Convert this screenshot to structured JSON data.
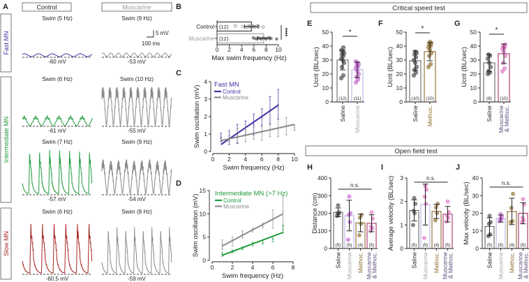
{
  "panelA": {
    "label": "A",
    "conditions": [
      {
        "name": "Control",
        "color": "#222222"
      },
      {
        "name": "Muscarine",
        "color": "#9a9a9a"
      }
    ],
    "rows": [
      {
        "name": "Fast MN",
        "color": "#3d33a3"
      },
      {
        "name": "Intermediate MN",
        "color": "#1f9b3c"
      },
      {
        "name": "Slow MN",
        "color": "#a3261f"
      }
    ],
    "traces": [
      {
        "row": 0,
        "condition": 0,
        "title": "Swim (5 Hz)",
        "frequency_hz": 5,
        "vm": "-60 mV",
        "color": "#3d33a3"
      },
      {
        "row": 0,
        "condition": 1,
        "title": "Swim (9 Hz)",
        "frequency_hz": 9,
        "vm": "-53 mV",
        "color": "#8a8a8a"
      },
      {
        "row": 1,
        "condition": 0,
        "title": "Swim (6 Hz)",
        "frequency_hz": 6,
        "vm": "-61 mV",
        "color": "#1f9b3c"
      },
      {
        "row": 1,
        "condition": 1,
        "title": "Swim (10 Hz)",
        "frequency_hz": 10,
        "vm": "-55 mV",
        "color": "#8a8a8a"
      },
      {
        "row": 1,
        "condition": 0,
        "title": "Swim (7 Hz)",
        "frequency_hz": 7,
        "vm": "-57 mV",
        "color": "#1f9b3c"
      },
      {
        "row": 1,
        "condition": 1,
        "title": "Swim (9 Hz)",
        "frequency_hz": 9,
        "vm": "-54 mV",
        "color": "#8a8a8a"
      },
      {
        "row": 2,
        "condition": 0,
        "title": "Swim (6 Hz)",
        "frequency_hz": 6,
        "vm": "-60.5 mV",
        "color": "#a3261f"
      },
      {
        "row": 2,
        "condition": 1,
        "title": "Swim (8 Hz)",
        "frequency_hz": 8,
        "vm": "-59 mV",
        "color": "#8a8a8a"
      }
    ],
    "scale_bar": {
      "voltage": "5 mV",
      "time": "100 ms"
    }
  },
  "headers": {
    "critical": "Critical speed test",
    "open_field": "Open field test"
  },
  "chart_data": [
    {
      "panel": "B",
      "type": "bar",
      "orientation": "horizontal",
      "categories": [
        "Control",
        "Muscarine"
      ],
      "label_colors": [
        "#222222",
        "#9a9a9a"
      ],
      "values": [
        5.6,
        7.6
      ],
      "sd": [
        1.1,
        1.0
      ],
      "n": [
        "(12)",
        "(12)"
      ],
      "points": [
        [
          3.0,
          4.2,
          4.9,
          5.2,
          5.4,
          5.6,
          5.8,
          6.0,
          6.2,
          6.5,
          6.8,
          7.5
        ],
        [
          5.9,
          6.1,
          6.4,
          6.7,
          7.0,
          7.2,
          7.5,
          7.8,
          8.0,
          8.3,
          8.8,
          9.7
        ]
      ],
      "xlabel": "Max swim frequency (Hz)",
      "xlim": [
        0,
        10
      ],
      "xticks": [
        0,
        2,
        4,
        6,
        8,
        10
      ],
      "significance": "****"
    },
    {
      "panel": "C",
      "type": "line",
      "title": "Fast MN",
      "title_color": "#3d33a3",
      "xlabel": "Swim frequency (Hz)",
      "ylabel": "Swim oscillation  (mV)",
      "xlim": [
        0,
        10
      ],
      "ylim": [
        0,
        4
      ],
      "xticks": [
        0,
        2,
        4,
        6,
        8,
        10
      ],
      "yticks": [
        0,
        1,
        2,
        3,
        4
      ],
      "series": [
        {
          "name": "Control",
          "color": "#3d33a3",
          "fit": [
            [
              1,
              0.4
            ],
            [
              8,
              2.65
            ]
          ],
          "x": [
            1,
            2,
            3,
            4,
            5,
            6,
            7,
            8
          ],
          "mean": [
            0.8,
            0.8,
            1.0,
            1.35,
            1.55,
            1.95,
            2.35,
            2.7
          ],
          "err": [
            0.25,
            0.4,
            0.55,
            0.4,
            0.6,
            0.5,
            0.8,
            0.85
          ]
        },
        {
          "name": "Muscarine",
          "color": "#8a8a8a",
          "fit": [
            [
              1,
              0.62
            ],
            [
              10,
              1.55
            ]
          ],
          "x": [
            1,
            2,
            3,
            4,
            5,
            6,
            7,
            8,
            9,
            10
          ],
          "mean": [
            0.65,
            0.75,
            0.9,
            0.95,
            1.05,
            1.1,
            1.25,
            1.35,
            1.45,
            1.35
          ],
          "err": [
            0.1,
            0.15,
            0.4,
            0.4,
            0.35,
            0.45,
            0.4,
            0.5,
            0.5,
            0.15
          ]
        }
      ]
    },
    {
      "panel": "D",
      "type": "line",
      "title": "Intermediate MN (>7 Hz)",
      "title_color": "#1f9b3c",
      "xlabel": "Swim frequency (Hz)",
      "ylabel": "Swim oscillation  (mV)",
      "xlim": [
        0,
        8
      ],
      "ylim": [
        0,
        15
      ],
      "xticks": [
        0,
        2,
        4,
        6,
        8
      ],
      "yticks": [
        0,
        5,
        10,
        15
      ],
      "series": [
        {
          "name": "Control",
          "color": "#1f9b3c",
          "fit": [
            [
              1,
              1.1
            ],
            [
              7,
              6.0
            ]
          ],
          "x": [
            1,
            2,
            3,
            4,
            5,
            6,
            7
          ],
          "mean": [
            1.3,
            1.9,
            2.6,
            3.5,
            3.9,
            4.6,
            6.7
          ],
          "err": [
            0.4,
            0.3,
            0.3,
            0.4,
            0.4,
            0.6,
            0.8
          ]
        },
        {
          "name": "Muscarine",
          "color": "#8a8a8a",
          "fit": [
            [
              1,
              3.1
            ],
            [
              7,
              10.0
            ]
          ],
          "x": [
            1,
            2,
            3,
            4,
            5,
            6,
            7
          ],
          "mean": [
            3.4,
            4.1,
            5.6,
            6.5,
            7.5,
            8.9,
            10.6
          ],
          "err": [
            1.0,
            1.0,
            0.8,
            0.4,
            0.5,
            2.0,
            3.2
          ]
        }
      ]
    },
    {
      "panel": "E",
      "type": "bar",
      "categories": [
        [
          "Saline"
        ],
        [
          "Muscarine"
        ]
      ],
      "label_colors": [
        "#222222",
        "#a8a8a8"
      ],
      "bar_colors": [
        "#666666",
        "#b8b0e8"
      ],
      "point_colors": [
        "#444444",
        "#c060d0"
      ],
      "values": [
        30,
        23
      ],
      "sd": [
        7,
        5.5
      ],
      "n": [
        "(12)",
        "(11)"
      ],
      "points": [
        [
          17,
          19,
          25,
          28,
          30,
          31,
          33,
          34,
          35,
          36,
          37,
          39
        ],
        [
          14,
          16,
          18,
          20,
          22,
          24,
          25,
          26,
          27,
          28,
          29
        ]
      ],
      "ylabel": "Ucrit (BL/sec)",
      "ylim": [
        0,
        50
      ],
      "yticks": [
        0,
        10,
        20,
        30,
        40,
        50
      ],
      "significance": "*"
    },
    {
      "panel": "F",
      "type": "bar",
      "categories": [
        [
          "Saline"
        ],
        [
          "Methoc."
        ]
      ],
      "label_colors": [
        "#222222",
        "#8b6a2a"
      ],
      "bar_colors": [
        "#666666",
        "#8b6a2a"
      ],
      "point_colors": [
        "#444444",
        "#8b6a2a"
      ],
      "values": [
        29.5,
        36
      ],
      "sd": [
        7,
        6.5
      ],
      "n": [
        "(10)",
        "(10)"
      ],
      "points": [
        [
          19,
          21,
          23,
          25,
          28,
          30,
          32,
          34,
          35,
          36
        ],
        [
          25,
          27,
          33,
          35,
          37,
          39,
          40,
          41,
          42,
          43
        ]
      ],
      "ylabel": "Ucrit (BL/sec)",
      "ylim": [
        0,
        50
      ],
      "yticks": [
        0,
        10,
        20,
        30,
        40,
        50
      ],
      "significance": "*"
    },
    {
      "panel": "G",
      "type": "bar",
      "categories": [
        [
          "Saline"
        ],
        [
          "Muscarine",
          "& Methoc."
        ]
      ],
      "label_colors": [
        "#222222",
        "#5a4a7a"
      ],
      "bar_colors": [
        "#666666",
        "#a8306a"
      ],
      "point_colors": [
        "#444444",
        "#e070c0"
      ],
      "values": [
        28,
        34.5
      ],
      "sd": [
        6,
        7
      ],
      "n": [
        "(8)",
        "(10)"
      ],
      "points": [
        [
          20,
          21,
          22,
          25,
          28,
          31,
          33,
          34
        ],
        [
          22,
          24,
          28,
          33,
          36,
          38,
          39,
          40,
          41,
          39
        ]
      ],
      "ylabel": "Ucrit (BL/sec)",
      "ylim": [
        0,
        50
      ],
      "yticks": [
        0,
        10,
        20,
        30,
        40,
        50
      ],
      "significance": "*"
    },
    {
      "panel": "H",
      "type": "bar",
      "categories": [
        [
          "Saline"
        ],
        [
          "Muscarine"
        ],
        [
          "Methoc."
        ],
        [
          "Muscarine",
          "& Methoc."
        ]
      ],
      "label_colors": [
        "#222222",
        "#a8a8a8",
        "#8b6a2a",
        "#5a4a7a"
      ],
      "bar_colors": [
        "#666666",
        "#b8b0e8",
        "#8b6a2a",
        "#a8306a"
      ],
      "point_colors": [
        "#444444",
        "#c060d0",
        "#8b6a2a",
        "#e070c0"
      ],
      "values": [
        205,
        187,
        145,
        143
      ],
      "sd": [
        25,
        87,
        50,
        48
      ],
      "n": [
        "(5)",
        "(5)",
        "(4)",
        "(5)"
      ],
      "points": [
        [
          185,
          195,
          200,
          205,
          245
        ],
        [
          50,
          150,
          190,
          200,
          295
        ],
        [
          75,
          140,
          175,
          190
        ],
        [
          100,
          115,
          125,
          170,
          205
        ]
      ],
      "ylabel": "Distance (cm)",
      "ylim": [
        0,
        400
      ],
      "yticks": [
        0,
        100,
        200,
        300,
        400
      ],
      "significance": "n.s."
    },
    {
      "panel": "I",
      "type": "bar",
      "categories": [
        [
          "Saline"
        ],
        [
          "Muscarine"
        ],
        [
          "Methoc."
        ],
        [
          "Muscarine",
          "& Methoc."
        ]
      ],
      "label_colors": [
        "#222222",
        "#a8a8a8",
        "#8b6a2a",
        "#5a4a7a"
      ],
      "bar_colors": [
        "#666666",
        "#b8b0e8",
        "#8b6a2a",
        "#a8306a"
      ],
      "point_colors": [
        "#444444",
        "#e070c0",
        "#8b6a2a",
        "#e070c0"
      ],
      "values": [
        1.62,
        1.87,
        1.58,
        1.46
      ],
      "sd": [
        0.45,
        0.87,
        0.3,
        0.33
      ],
      "n": [
        "(5)",
        "(5)",
        "(4)",
        "(5)"
      ],
      "points": [
        [
          1.0,
          1.5,
          1.6,
          1.9,
          2.15
        ],
        [
          0.45,
          1.9,
          2.2,
          2.5,
          2.65
        ],
        [
          1.2,
          1.5,
          1.75,
          1.9
        ],
        [
          1.15,
          1.3,
          1.4,
          1.55,
          2.0
        ]
      ],
      "ylabel": "Average velocity (BL/sec)",
      "ylim": [
        0,
        3
      ],
      "yticks": [
        0,
        1,
        2,
        3
      ],
      "significance": "n.s."
    },
    {
      "panel": "J",
      "type": "bar",
      "categories": [
        [
          "Saline"
        ],
        [
          "Muscarine"
        ],
        [
          "Methoc."
        ],
        [
          "Muscarine",
          "& Methoc."
        ]
      ],
      "label_colors": [
        "#222222",
        "#a8a8a8",
        "#8b6a2a",
        "#5a4a7a"
      ],
      "bar_colors": [
        "#666666",
        "#b8b0e8",
        "#8b6a2a",
        "#a8306a"
      ],
      "point_colors": [
        "#444444",
        "#c060d0",
        "#8b6a2a",
        "#e070c0"
      ],
      "values": [
        12.5,
        17,
        21,
        20
      ],
      "sd": [
        5,
        2,
        7.5,
        6
      ],
      "n": [
        "(5)",
        "(5)",
        "(4)",
        "(5)"
      ],
      "points": [
        [
          7,
          8,
          14,
          15,
          18.5
        ],
        [
          15.5,
          16.5,
          17,
          18,
          19.5
        ],
        [
          15,
          15.5,
          23,
          31
        ],
        [
          15,
          16,
          17.5,
          25,
          28
        ]
      ],
      "ylabel": "Max velocity (BL/sec)",
      "ylim": [
        0,
        40
      ],
      "yticks": [
        0,
        10,
        20,
        30,
        40
      ],
      "significance": "n.s."
    }
  ]
}
